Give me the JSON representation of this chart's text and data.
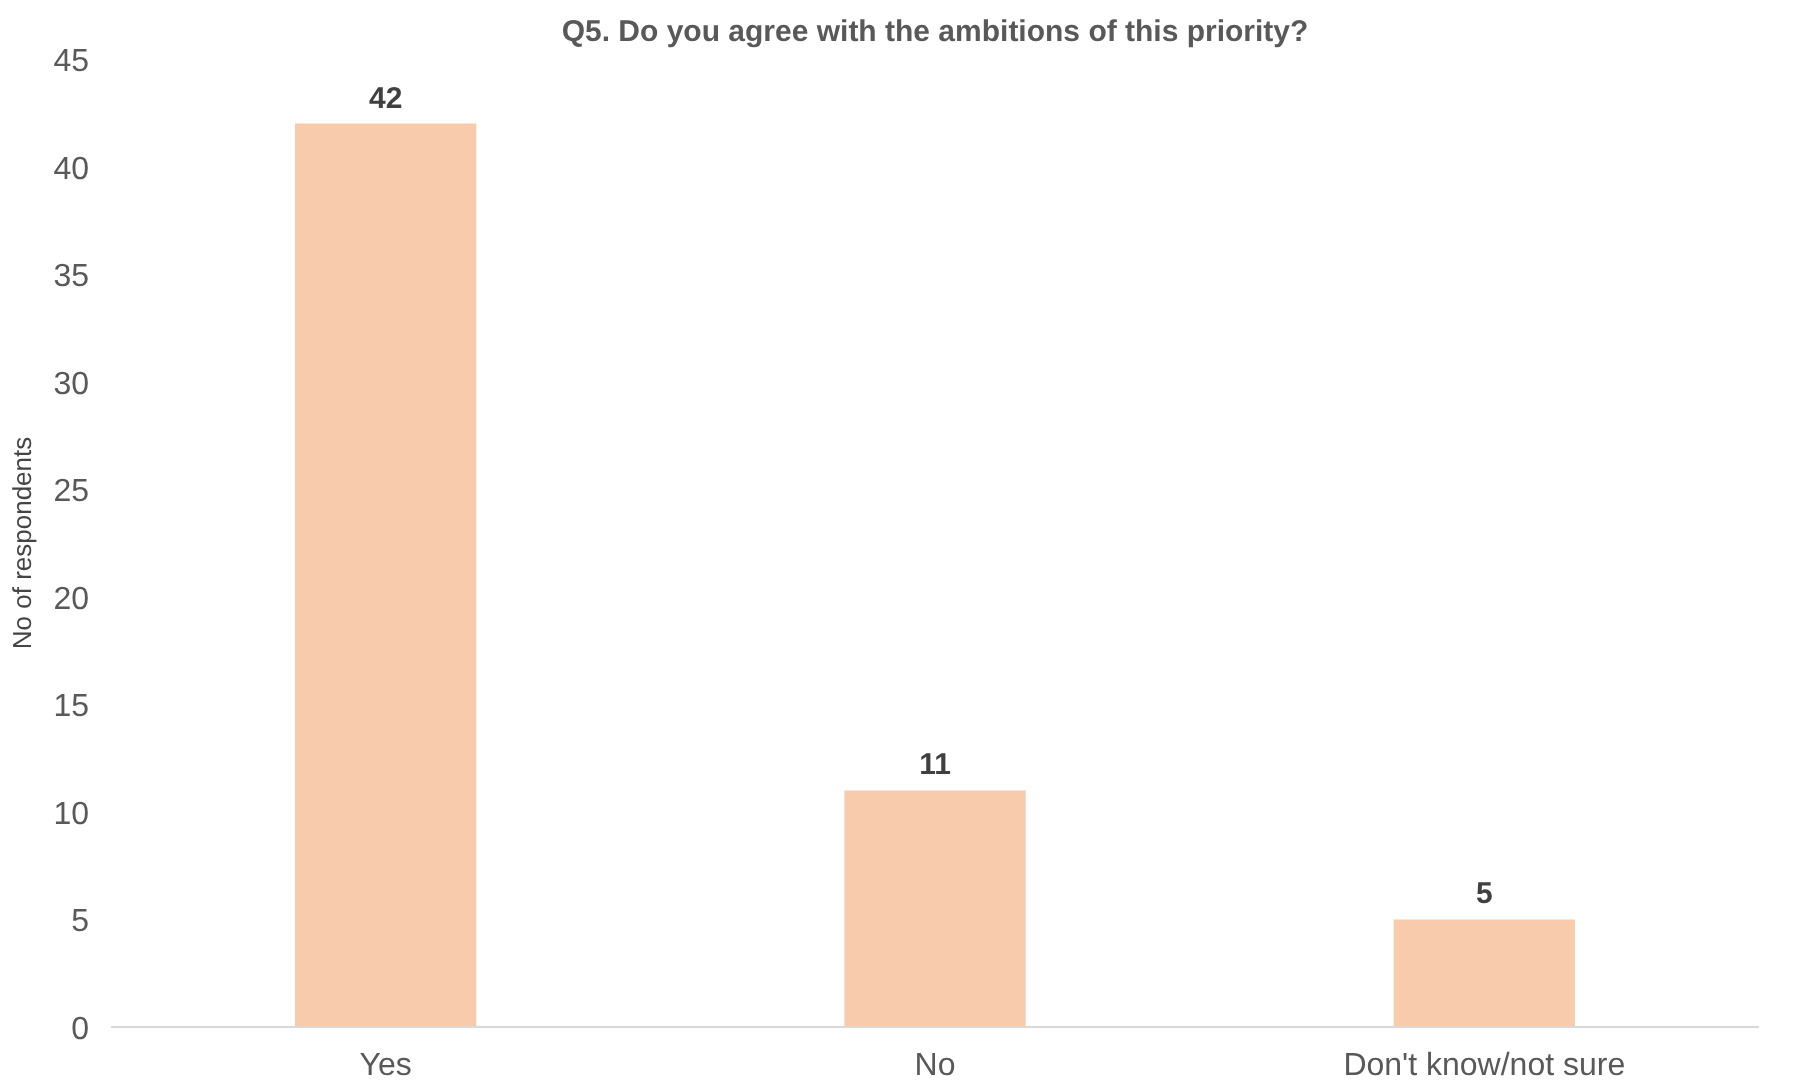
{
  "chart_data": {
    "type": "bar",
    "title": "Q5. Do you agree with the ambitions of this priority?",
    "ylabel": "No of respondents",
    "categories": [
      "Yes",
      "No",
      "Don't know/not sure"
    ],
    "values": [
      42,
      11,
      5
    ],
    "color": "#f8cbad",
    "ylim": [
      0,
      45
    ],
    "yticks": [
      0,
      5,
      10,
      15,
      20,
      25,
      30,
      35,
      40,
      45
    ],
    "grid": false,
    "data_labels": true
  }
}
